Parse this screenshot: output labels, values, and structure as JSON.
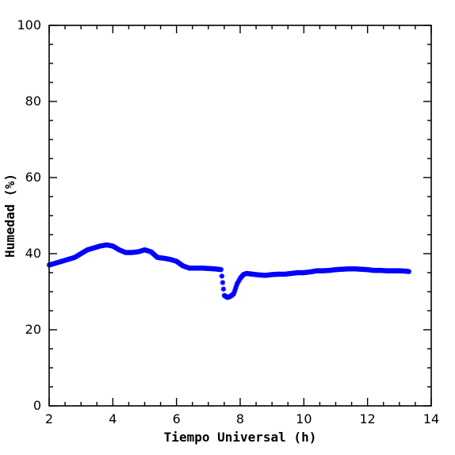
{
  "chart_data": {
    "type": "scatter",
    "title": "",
    "xlabel": "Tiempo Universal (h)",
    "ylabel": "Humedad (%)",
    "xlim": [
      2,
      14
    ],
    "ylim": [
      0,
      100
    ],
    "x_ticks": [
      2,
      4,
      6,
      8,
      10,
      12,
      14
    ],
    "y_ticks": [
      0,
      20,
      40,
      60,
      80,
      100
    ],
    "x_tick_labels": [
      "2",
      "4",
      "6",
      "8",
      "10",
      "12",
      "14"
    ],
    "y_tick_labels": [
      "0",
      "20",
      "40",
      "60",
      "80",
      "100"
    ],
    "marker": "asterisk",
    "grid": false,
    "colors": {
      "series": "#0000ff",
      "axis": "#000000"
    },
    "series": [
      {
        "x": [
          2.0,
          2.2,
          2.4,
          2.6,
          2.8,
          3.0,
          3.2,
          3.4,
          3.6,
          3.8,
          4.0,
          4.2,
          4.4,
          4.6,
          4.8,
          5.0,
          5.2,
          5.4,
          5.6,
          5.8,
          6.0,
          6.2,
          6.4,
          6.6,
          6.8,
          7.0,
          7.2,
          7.4,
          7.5,
          7.6,
          7.7,
          7.8,
          7.9,
          8.0,
          8.1,
          8.2,
          8.4,
          8.6,
          8.8,
          9.0,
          9.2,
          9.4,
          9.6,
          9.8,
          10.0,
          10.2,
          10.4,
          10.6,
          10.8,
          11.0,
          11.2,
          11.4,
          11.6,
          11.8,
          12.0,
          12.2,
          12.4,
          12.6,
          12.8,
          13.0,
          13.2,
          13.3
        ],
        "y": [
          37.0,
          37.5,
          38.0,
          38.5,
          39.0,
          40.0,
          41.0,
          41.5,
          42.0,
          42.3,
          42.0,
          41.0,
          40.3,
          40.3,
          40.5,
          41.0,
          40.5,
          39.0,
          38.8,
          38.5,
          38.0,
          36.8,
          36.2,
          36.2,
          36.2,
          36.1,
          36.0,
          35.8,
          29.0,
          28.5,
          28.8,
          29.5,
          32.0,
          33.5,
          34.5,
          34.8,
          34.6,
          34.4,
          34.3,
          34.5,
          34.6,
          34.6,
          34.8,
          35.0,
          35.0,
          35.2,
          35.5,
          35.5,
          35.6,
          35.8,
          35.9,
          36.0,
          36.0,
          35.9,
          35.8,
          35.6,
          35.6,
          35.5,
          35.5,
          35.5,
          35.4,
          35.3
        ]
      }
    ]
  }
}
